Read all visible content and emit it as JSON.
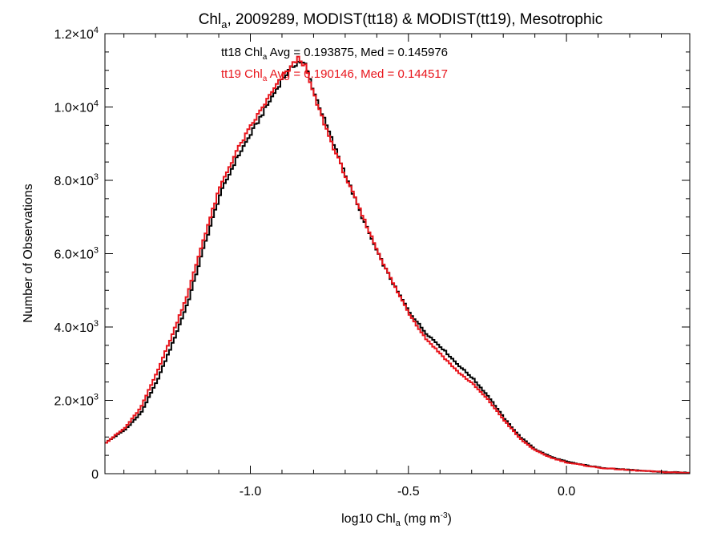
{
  "chart_data": {
    "type": "line",
    "title": {
      "base": "Chl",
      "sub": "a",
      "rest": ", 2009289, MODIST(tt18) & MODIST(tt19), Mesotrophic"
    },
    "xlabel": {
      "base": "log10 Chl",
      "sub": "a",
      "unit_pre": " (mg m",
      "unit_sup": "-3",
      "unit_post": ")"
    },
    "ylabel": "Number of Observations",
    "xlim": [
      -1.46,
      0.39
    ],
    "ylim": [
      0,
      12000
    ],
    "x_ticks": [
      {
        "value": -1.0,
        "label": "-1.0"
      },
      {
        "value": -0.5,
        "label": "-0.5"
      },
      {
        "value": 0.0,
        "label": "0.0"
      }
    ],
    "y_ticks": [
      {
        "value": 0,
        "plain": "0",
        "mant": "",
        "exp": ""
      },
      {
        "value": 2000,
        "plain": "",
        "mant": "2.0×10",
        "exp": "3"
      },
      {
        "value": 4000,
        "plain": "",
        "mant": "4.0×10",
        "exp": "3"
      },
      {
        "value": 6000,
        "plain": "",
        "mant": "6.0×10",
        "exp": "3"
      },
      {
        "value": 8000,
        "plain": "",
        "mant": "8.0×10",
        "exp": "3"
      },
      {
        "value": 10000,
        "plain": "",
        "mant": "1.0×10",
        "exp": "4"
      },
      {
        "value": 12000,
        "plain": "",
        "mant": "1.2×10",
        "exp": "4"
      }
    ],
    "grid": false,
    "legend_placement": "top-center",
    "annotations": [
      {
        "series": "tt18",
        "pre": "tt18 Chl",
        "sub": "a",
        "post": " Avg = 0.193875, Med = 0.145976",
        "color": "#000000"
      },
      {
        "series": "tt19",
        "pre": "tt19 Chl",
        "sub": "a",
        "post": " Avg = 0.190146, Med = 0.144517",
        "color": "#e8141b"
      }
    ],
    "series": [
      {
        "name": "tt18",
        "color": "#000000",
        "step": true,
        "x": [
          -1.46,
          -1.4,
          -1.35,
          -1.3,
          -1.25,
          -1.2,
          -1.15,
          -1.1,
          -1.05,
          -1.0,
          -0.95,
          -0.9,
          -0.87,
          -0.85,
          -0.83,
          -0.8,
          -0.75,
          -0.7,
          -0.65,
          -0.6,
          -0.55,
          -0.5,
          -0.45,
          -0.4,
          -0.35,
          -0.3,
          -0.25,
          -0.2,
          -0.15,
          -0.1,
          -0.05,
          0.0,
          0.05,
          0.1,
          0.2,
          0.3,
          0.39
        ],
        "y": [
          850,
          1200,
          1650,
          2500,
          3550,
          4700,
          6200,
          7600,
          8550,
          9300,
          10050,
          10800,
          11100,
          11250,
          11150,
          10350,
          9200,
          8100,
          7000,
          6000,
          5150,
          4400,
          3850,
          3450,
          3000,
          2600,
          2100,
          1500,
          1000,
          650,
          450,
          320,
          240,
          170,
          100,
          50,
          20
        ]
      },
      {
        "name": "tt19",
        "color": "#e8141b",
        "step": true,
        "x": [
          -1.46,
          -1.4,
          -1.35,
          -1.3,
          -1.25,
          -1.2,
          -1.15,
          -1.1,
          -1.05,
          -1.0,
          -0.95,
          -0.9,
          -0.87,
          -0.85,
          -0.83,
          -0.8,
          -0.75,
          -0.7,
          -0.65,
          -0.6,
          -0.55,
          -0.5,
          -0.45,
          -0.4,
          -0.35,
          -0.3,
          -0.25,
          -0.2,
          -0.15,
          -0.1,
          -0.05,
          0.0,
          0.05,
          0.1,
          0.2,
          0.3,
          0.39
        ],
        "y": [
          850,
          1250,
          1800,
          2750,
          3800,
          4950,
          6450,
          7800,
          8750,
          9500,
          10200,
          10850,
          11150,
          11350,
          11100,
          10250,
          9100,
          8050,
          7050,
          6050,
          5150,
          4350,
          3700,
          3250,
          2800,
          2450,
          2000,
          1450,
          950,
          620,
          430,
          300,
          230,
          160,
          95,
          45,
          18
        ]
      }
    ]
  }
}
